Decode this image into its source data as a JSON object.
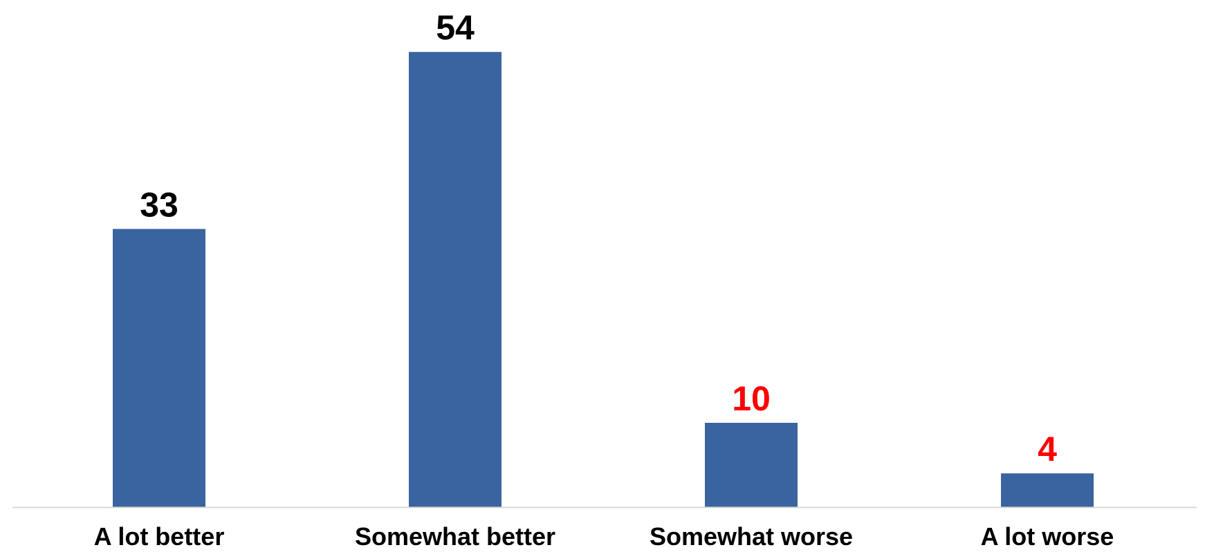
{
  "chart_data": {
    "type": "bar",
    "categories": [
      "A lot better",
      "Somewhat better",
      "Somewhat worse",
      "A lot worse"
    ],
    "values": [
      33,
      54,
      10,
      4
    ],
    "value_label_colors": [
      "#000000",
      "#000000",
      "#ff0000",
      "#ff0000"
    ],
    "bar_color": "#3a64a0",
    "axis_line_color": "#d9d9d9",
    "title": "",
    "xlabel": "",
    "ylabel": "",
    "ylim": [
      0,
      60
    ],
    "grid": false,
    "legend": "none"
  }
}
